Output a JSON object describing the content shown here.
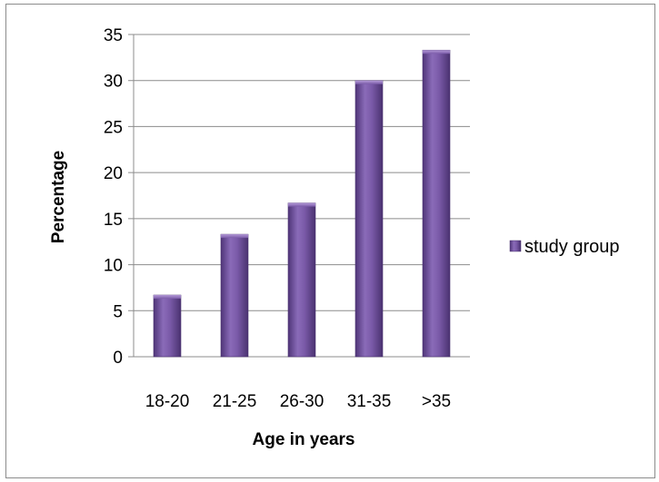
{
  "chart_data": {
    "type": "bar",
    "title": "",
    "xlabel": "Age in years",
    "ylabel": "Percentage",
    "categories": [
      "18-20",
      "21-25",
      "26-30",
      "31-35",
      ">35"
    ],
    "series": [
      {
        "name": "study group",
        "values": [
          6.7,
          13.3,
          16.7,
          30,
          33.3
        ],
        "color": "#7b5aa6"
      }
    ],
    "ylim": [
      0,
      35
    ],
    "yticks": [
      "0",
      "5",
      "10",
      "15",
      "20",
      "25",
      "30",
      "35"
    ],
    "grid": true,
    "legend_position": "right"
  }
}
